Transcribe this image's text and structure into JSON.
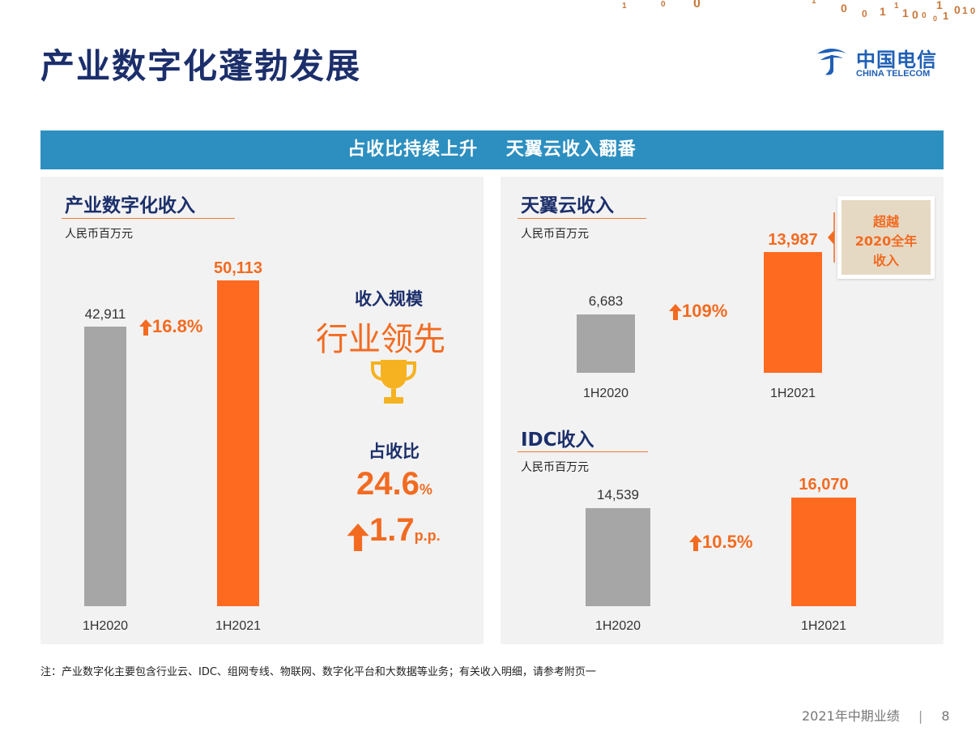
{
  "page": {
    "title": "产业数字化蓬勃发展",
    "banner": "占收比持续上升    天翼云收入翻番",
    "note": "注：产业数字化主要包含行业云、IDC、组网专线、物联网、数字化平台和大数据等业务；有关收入明细，请参考附页一",
    "footer": "2021年中期业绩",
    "page_number": "8",
    "logo_cn": "中国电信",
    "logo_en": "CHINA TELECOM",
    "deco_digits": [
      "1",
      "0",
      "0",
      "1",
      "0",
      "0",
      "1",
      "1",
      "1",
      "0",
      "0",
      "1",
      "0",
      "1",
      "0",
      "1",
      "0"
    ]
  },
  "left_panel": {
    "scale_label": "收入规模",
    "scale_value": "行业领先",
    "ratio_label": "占收比",
    "ratio_value": "24.6",
    "ratio_unit": "%",
    "ratio_change": "1.7",
    "ratio_change_unit": "p.p."
  },
  "cloud_badge": {
    "line1": "超越",
    "line2": "2020全年",
    "line3": "收入"
  },
  "chart_data": [
    {
      "type": "bar",
      "title": "产业数字化收入",
      "unit": "人民币百万元",
      "categories": [
        "1H2020",
        "1H2021"
      ],
      "values": [
        42911,
        50113
      ],
      "value_labels": [
        "42,911",
        "50,113"
      ],
      "growth": "16.8%",
      "colors": [
        "#a6a6a6",
        "#ff6a21"
      ]
    },
    {
      "type": "bar",
      "title": "天翼云收入",
      "unit": "人民币百万元",
      "categories": [
        "1H2020",
        "1H2021"
      ],
      "values": [
        6683,
        13987
      ],
      "value_labels": [
        "6,683",
        "13,987"
      ],
      "growth": "109%",
      "colors": [
        "#a6a6a6",
        "#ff6a21"
      ]
    },
    {
      "type": "bar",
      "title": "IDC收入",
      "unit": "人民币百万元",
      "categories": [
        "1H2020",
        "1H2021"
      ],
      "values": [
        14539,
        16070
      ],
      "value_labels": [
        "14,539",
        "16,070"
      ],
      "growth": "10.5%",
      "colors": [
        "#a6a6a6",
        "#ff6a21"
      ]
    }
  ]
}
